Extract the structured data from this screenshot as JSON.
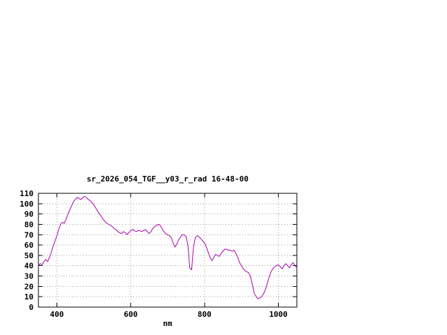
{
  "page": {
    "background_color": "#ffffff"
  },
  "chart_data": {
    "type": "line",
    "title": "sr_2026_054_TGF__y03_r_rad 16-48-00",
    "xlabel": "nm",
    "ylabel": "",
    "xlim": [
      350,
      1050
    ],
    "ylim": [
      0,
      110
    ],
    "xticks": [
      400,
      600,
      800,
      1000
    ],
    "yticks": [
      0,
      10,
      20,
      30,
      40,
      50,
      60,
      70,
      80,
      90,
      100,
      110
    ],
    "grid": true,
    "legend": "none",
    "line_color": "#aa00aa",
    "axis_color": "#000000",
    "grid_color": "#999999",
    "x": [
      350,
      355,
      360,
      365,
      370,
      375,
      380,
      385,
      390,
      395,
      400,
      405,
      410,
      415,
      420,
      425,
      430,
      435,
      440,
      445,
      450,
      455,
      460,
      465,
      470,
      475,
      480,
      485,
      490,
      495,
      500,
      505,
      510,
      515,
      520,
      525,
      530,
      535,
      540,
      545,
      550,
      555,
      560,
      565,
      570,
      575,
      580,
      585,
      590,
      595,
      600,
      605,
      610,
      615,
      620,
      625,
      630,
      635,
      640,
      645,
      650,
      655,
      660,
      665,
      670,
      675,
      680,
      685,
      690,
      695,
      700,
      705,
      710,
      715,
      720,
      725,
      730,
      735,
      740,
      745,
      750,
      755,
      760,
      765,
      770,
      775,
      780,
      785,
      790,
      795,
      800,
      805,
      810,
      815,
      820,
      825,
      830,
      835,
      840,
      845,
      850,
      855,
      860,
      865,
      870,
      875,
      880,
      885,
      890,
      895,
      900,
      905,
      910,
      915,
      920,
      925,
      930,
      935,
      940,
      945,
      950,
      955,
      960,
      965,
      970,
      975,
      980,
      985,
      990,
      995,
      1000,
      1005,
      1010,
      1015,
      1020,
      1025,
      1030,
      1035,
      1040,
      1045,
      1050
    ],
    "values": [
      40,
      42,
      41,
      44,
      46,
      44,
      48,
      53,
      59,
      64,
      69,
      75,
      80,
      82,
      81,
      85,
      90,
      94,
      98,
      102,
      104,
      106,
      105,
      104,
      106,
      107,
      106,
      104,
      103,
      101,
      99,
      96,
      93,
      90,
      88,
      85,
      83,
      81,
      80,
      79,
      78,
      76,
      75,
      73,
      72,
      71,
      73,
      72,
      70,
      72,
      74,
      75,
      74,
      73,
      74,
      74,
      73,
      74,
      75,
      73,
      71,
      73,
      76,
      78,
      79,
      80,
      79,
      76,
      73,
      71,
      70,
      69,
      67,
      62,
      58,
      61,
      65,
      68,
      70,
      70,
      68,
      60,
      38,
      36,
      58,
      67,
      69,
      68,
      66,
      64,
      62,
      58,
      53,
      48,
      45,
      48,
      51,
      50,
      49,
      52,
      54,
      56,
      56,
      55,
      55,
      54,
      55,
      52,
      48,
      43,
      40,
      37,
      35,
      34,
      33,
      29,
      21,
      13,
      10,
      8,
      9,
      10,
      13,
      17,
      23,
      29,
      34,
      37,
      39,
      40,
      41,
      39,
      37,
      40,
      42,
      40,
      38,
      41,
      43,
      40,
      38
    ]
  }
}
